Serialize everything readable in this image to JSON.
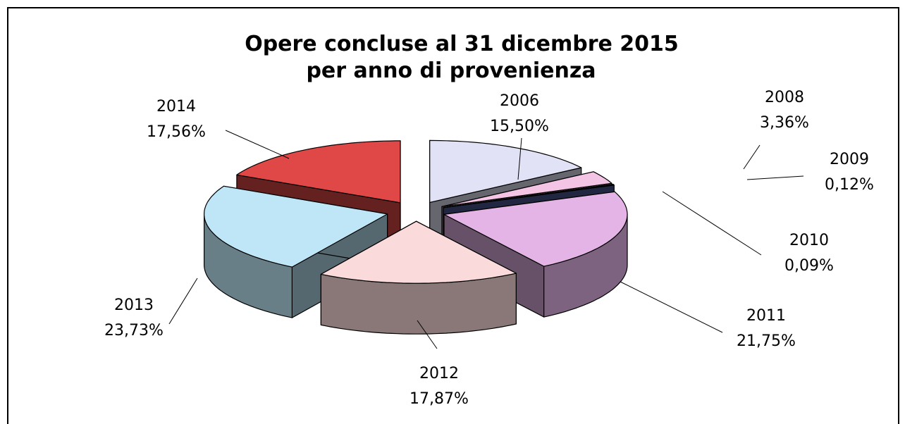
{
  "chart_data": {
    "type": "pie3d",
    "title": "Opere concluse al 31 dicembre 2015",
    "subtitle": "per anno di provenienza",
    "categories": [
      "2006",
      "2008",
      "2009",
      "2010",
      "2011",
      "2012",
      "2013",
      "2014"
    ],
    "values": [
      15.5,
      3.36,
      0.12,
      0.09,
      21.75,
      17.87,
      23.73,
      17.56
    ],
    "value_labels": [
      "15,50%",
      "3,36%",
      "0,12%",
      "0,09%",
      "21,75%",
      "17,87%",
      "23,73%",
      "17,56%"
    ],
    "colors": [
      "#e2e2f6",
      "#f4c4e4",
      "#b07a86",
      "#4a5490",
      "#e4b4e6",
      "#fadada",
      "#bfe6f7",
      "#e04848"
    ]
  }
}
